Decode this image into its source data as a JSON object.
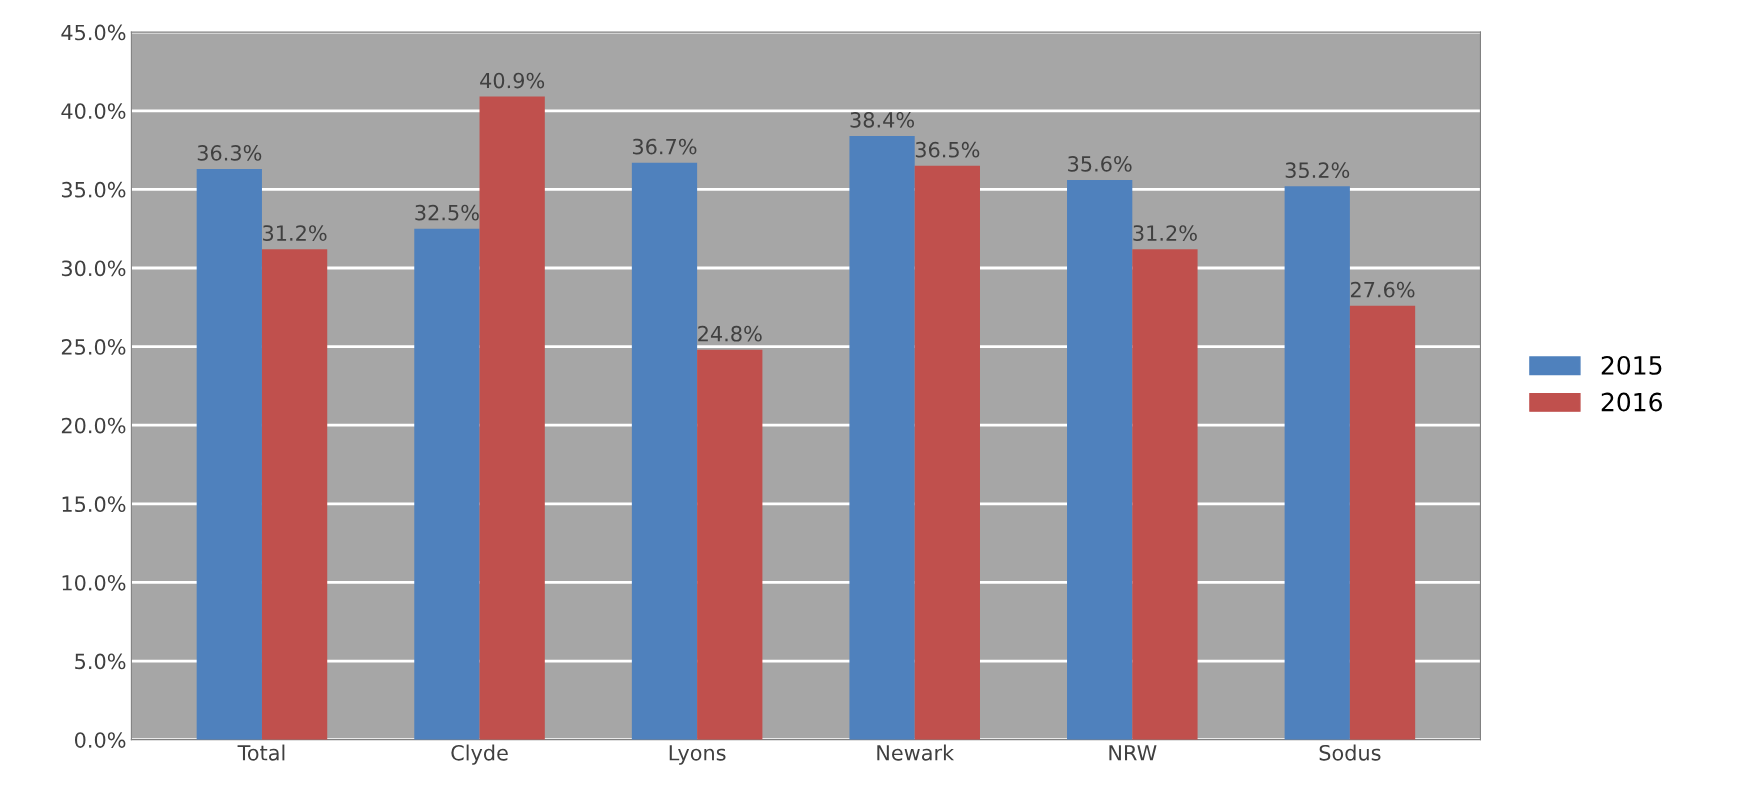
{
  "chart_data": {
    "type": "bar",
    "categories": [
      "Total",
      "Clyde",
      "Lyons",
      "Newark",
      "NRW",
      "Sodus"
    ],
    "series": [
      {
        "name": "2015",
        "color": "#4f81bd",
        "values": [
          36.3,
          32.5,
          36.7,
          38.4,
          35.6,
          35.2
        ],
        "value_labels": [
          "36.3%",
          "32.5%",
          "36.7%",
          "38.4%",
          "35.6%",
          "35.2%"
        ]
      },
      {
        "name": "2016",
        "color": "#c0504d",
        "values": [
          31.2,
          40.9,
          24.8,
          36.5,
          31.2,
          27.6
        ],
        "value_labels": [
          "31.2%",
          "40.9%",
          "24.8%",
          "36.5%",
          "31.2%",
          "27.6%"
        ]
      }
    ],
    "ylim": [
      0,
      45
    ],
    "yticks": [
      {
        "value": 0,
        "label": "0.0%"
      },
      {
        "value": 5,
        "label": "5.0%"
      },
      {
        "value": 10,
        "label": "10.0%"
      },
      {
        "value": 15,
        "label": "15.0%"
      },
      {
        "value": 20,
        "label": "20.0%"
      },
      {
        "value": 25,
        "label": "25.0%"
      },
      {
        "value": 30,
        "label": "30.0%"
      },
      {
        "value": 35,
        "label": "35.0%"
      },
      {
        "value": 40,
        "label": "40.0%"
      },
      {
        "value": 45,
        "label": "45.0%"
      }
    ],
    "grid": "y",
    "legend": "right"
  }
}
